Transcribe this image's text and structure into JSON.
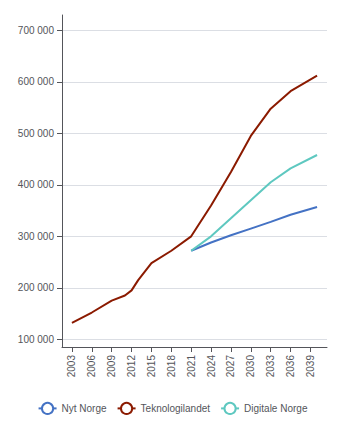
{
  "chart_data": {
    "type": "line",
    "series": [
      {
        "name": "Nyt Norge",
        "color": "#4472C4",
        "x": [
          2021,
          2024,
          2027,
          2030,
          2033,
          2036,
          2040
        ],
        "values": [
          272000,
          288000,
          302000,
          315000,
          328000,
          342000,
          357000
        ]
      },
      {
        "name": "Teknologilandet",
        "color": "#8B1A00",
        "x": [
          2003,
          2006,
          2009,
          2011,
          2012,
          2013,
          2015,
          2018,
          2021,
          2024,
          2027,
          2030,
          2033,
          2036,
          2040
        ],
        "values": [
          132000,
          152000,
          175000,
          185000,
          195000,
          215000,
          248000,
          272000,
          300000,
          360000,
          425000,
          495000,
          548000,
          582000,
          612000
        ]
      },
      {
        "name": "Digitale Norge",
        "color": "#5EC8C0",
        "x": [
          2021,
          2024,
          2027,
          2030,
          2033,
          2036,
          2040
        ],
        "values": [
          272000,
          300000,
          335000,
          370000,
          405000,
          432000,
          458000
        ]
      }
    ],
    "xlim": [
      2001.5,
      2041.5
    ],
    "xticks": [
      2003,
      2006,
      2009,
      2012,
      2015,
      2018,
      2021,
      2024,
      2027,
      2030,
      2033,
      2036,
      2039
    ],
    "ylim": [
      85000,
      730000
    ],
    "yticks": [
      {
        "value": 100000,
        "label": "100 000"
      },
      {
        "value": 200000,
        "label": "200 000"
      },
      {
        "value": 300000,
        "label": "300 000"
      },
      {
        "value": 400000,
        "label": "400 000"
      },
      {
        "value": 500000,
        "label": "500 000"
      },
      {
        "value": 600000,
        "label": "600 000"
      },
      {
        "value": 700000,
        "label": "700 000"
      }
    ],
    "grid": true,
    "legend": "bottom"
  }
}
